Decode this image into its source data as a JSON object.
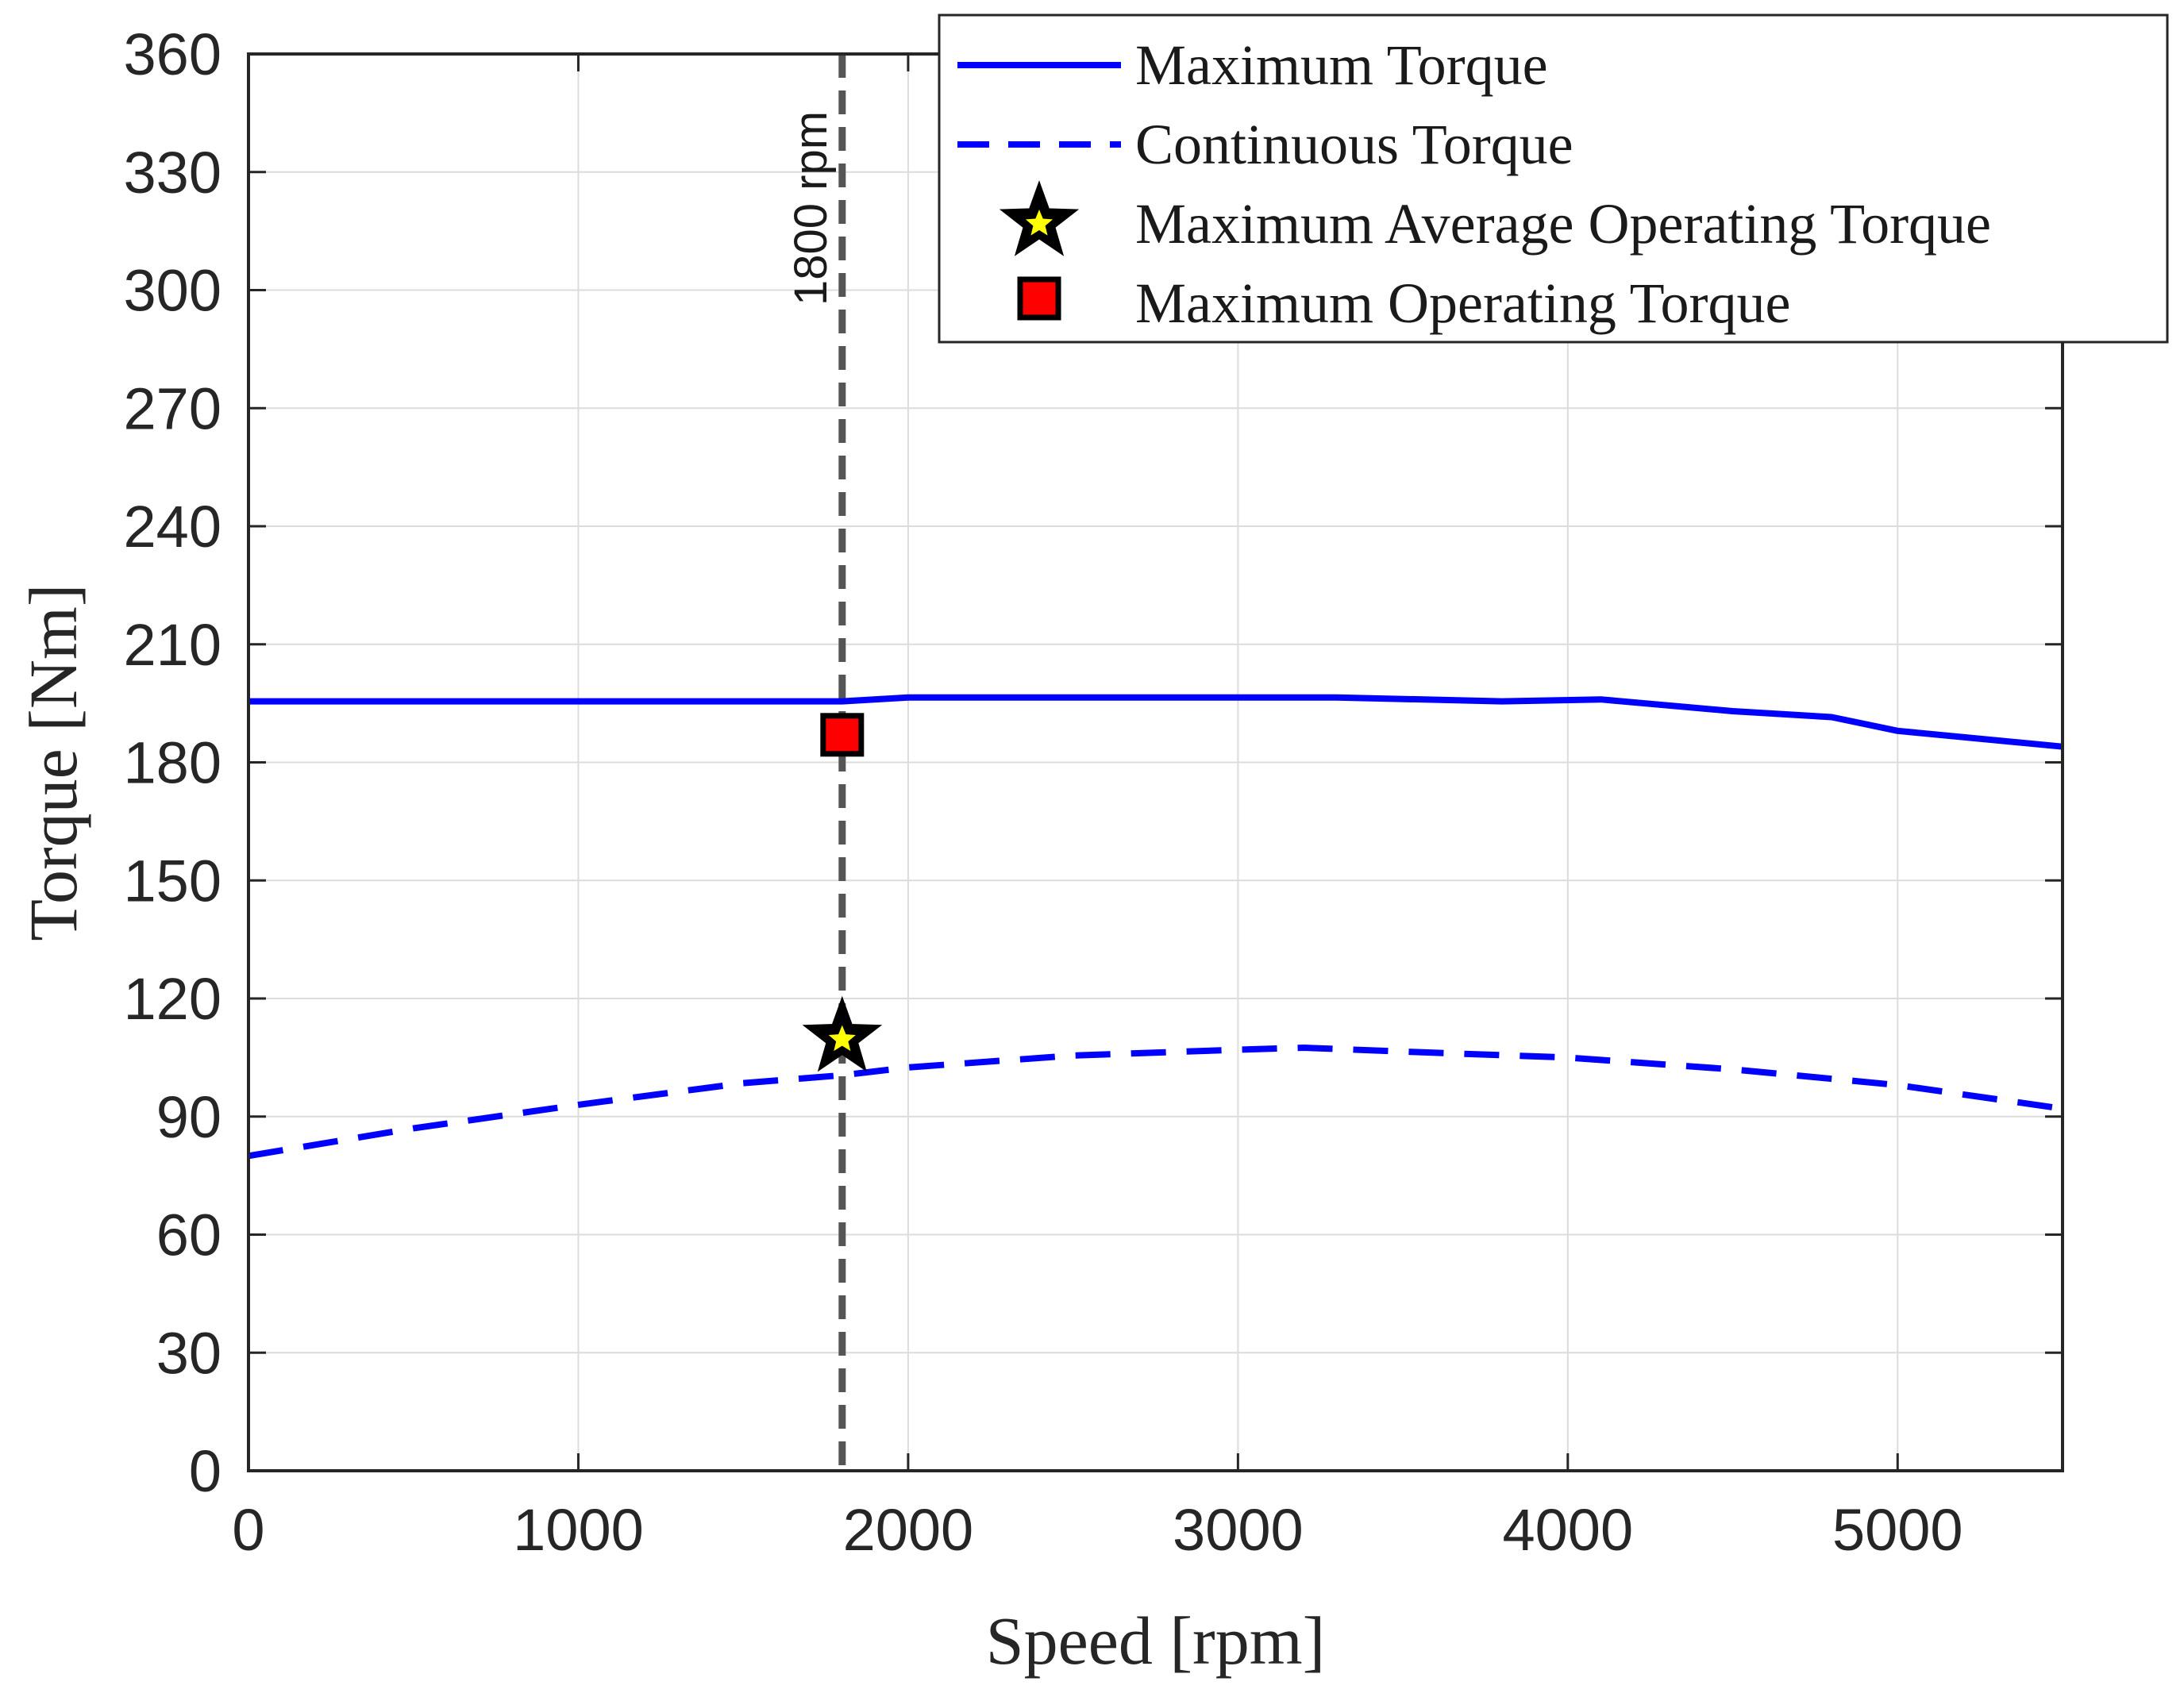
{
  "chart_data": {
    "type": "line",
    "title": "",
    "xlabel": "Speed [rpm]",
    "ylabel": "Torque [Nm]",
    "xlim": [
      0,
      5500
    ],
    "ylim": [
      0,
      360
    ],
    "xticks": [
      0,
      1000,
      2000,
      3000,
      4000,
      5000
    ],
    "yticks": [
      0,
      30,
      60,
      90,
      120,
      150,
      180,
      210,
      240,
      270,
      300,
      330,
      360
    ],
    "grid": true,
    "legend_position": "top-right",
    "series": [
      {
        "name": "Maximum Torque",
        "style": "solid",
        "color": "#0000ff",
        "x": [
          0,
          500,
          1000,
          1500,
          1800,
          2000,
          2500,
          3000,
          3300,
          3800,
          4100,
          4500,
          4800,
          5000,
          5500
        ],
        "y": [
          195.5,
          195.5,
          195.5,
          195.5,
          195.5,
          196.5,
          196.5,
          196.5,
          196.5,
          195.5,
          196,
          193,
          191.5,
          188,
          184
        ]
      },
      {
        "name": "Continuous Torque",
        "style": "dashed",
        "color": "#0000ff",
        "x": [
          0,
          500,
          1000,
          1500,
          1800,
          2000,
          2500,
          3000,
          3200,
          3500,
          4000,
          4500,
          5000,
          5500
        ],
        "y": [
          80,
          87,
          93,
          98.5,
          100.5,
          102.5,
          105.5,
          107,
          107.5,
          106.5,
          105,
          102,
          98,
          92
        ]
      }
    ],
    "markers": [
      {
        "name": "Maximum Average Operating Torque",
        "shape": "star",
        "x": 1800,
        "y": 110,
        "edge_color": "#000000",
        "face_color": "#ffff00"
      },
      {
        "name": "Maximum Operating Torque",
        "shape": "square",
        "x": 1800,
        "y": 187,
        "edge_color": "#000000",
        "face_color": "#ff0000"
      }
    ],
    "reference_line": {
      "x": 1800,
      "label": "1800 rpm",
      "color": "#555555",
      "style": "dashed"
    },
    "legend": [
      {
        "label": "Maximum Torque",
        "kind": "line-solid"
      },
      {
        "label": "Continuous Torque",
        "kind": "line-dashed"
      },
      {
        "label": "Maximum Average Operating Torque",
        "kind": "star"
      },
      {
        "label": "Maximum Operating Torque",
        "kind": "square"
      }
    ]
  }
}
